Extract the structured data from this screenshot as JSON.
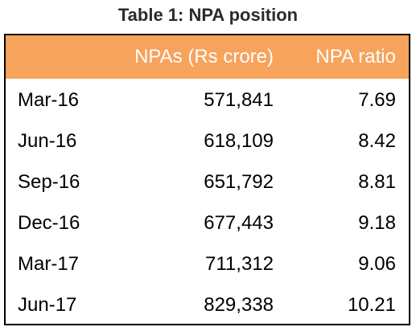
{
  "title": "Table 1: NPA position",
  "chart_data": {
    "type": "table",
    "title": "Table 1: NPA position",
    "columns": [
      "",
      "NPAs (Rs crore)",
      "NPA ratio"
    ],
    "rows": [
      [
        "Mar-16",
        "571,841",
        "7.69"
      ],
      [
        "Jun-16",
        "618,109",
        "8.42"
      ],
      [
        "Sep-16",
        "651,792",
        "8.81"
      ],
      [
        "Dec-16",
        "677,443",
        "9.18"
      ],
      [
        "Mar-17",
        "711,312",
        "9.06"
      ],
      [
        "Jun-17",
        "829,338",
        "10.21"
      ]
    ]
  },
  "colors": {
    "header_background": "#f7a35c",
    "header_text": "#ffffff",
    "border": "#000000"
  }
}
